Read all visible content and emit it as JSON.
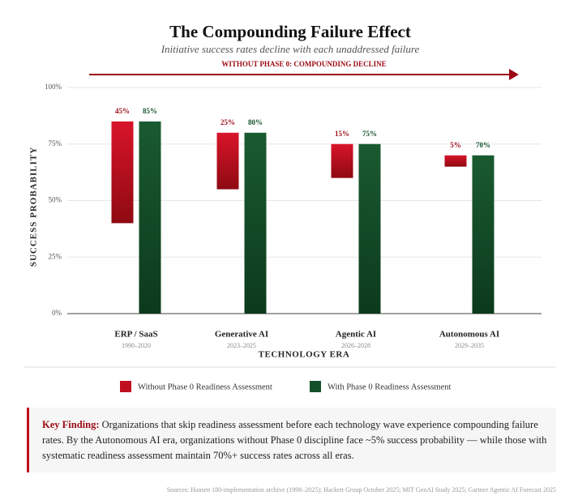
{
  "chart_data": {
    "type": "bar",
    "title": "The Compounding Failure Effect",
    "subtitle": "Initiative success rates decline with each unaddressed failure",
    "banner": "WITHOUT PHASE 0: COMPOUNDING DECLINE",
    "y_label": "SUCCESS PROBABILITY",
    "x_label": "TECHNOLOGY ERA",
    "categories": [
      "ERP / SaaS",
      "Generative AI",
      "Agentic AI",
      "Autonomous AI"
    ],
    "category_periods": [
      "1990–2020",
      "2023–2025",
      "2026–2028",
      "2029–2035"
    ],
    "series": [
      {
        "name": "Without Phase 0 Readiness Assessment",
        "color": "#c0101f",
        "values": [
          45,
          25,
          15,
          5
        ],
        "value_labels": [
          "45%",
          "25%",
          "15%",
          "5%"
        ]
      },
      {
        "name": "With Phase 0 Readiness Assessment",
        "color": "#14512a",
        "values": [
          85,
          80,
          75,
          70
        ],
        "value_labels": [
          "85%",
          "80%",
          "75%",
          "70%"
        ]
      }
    ],
    "ylim": [
      0,
      100
    ],
    "yticks": [
      {
        "value": 0,
        "label": "0%"
      },
      {
        "value": 25,
        "label": "25%"
      },
      {
        "value": 50,
        "label": "50%"
      },
      {
        "value": 75,
        "label": "75%"
      },
      {
        "value": 100,
        "label": "100%"
      }
    ],
    "grid": true,
    "finding": {
      "label": "Key Finding:",
      "text": "Organizations that skip readiness assessment before each technology wave experience compounding failure rates. By the Autonomous AI era, organizations without Phase 0 discipline face ~5% success probability — while those with systematic readiness assessment maintain 70%+ success rates across all eras."
    },
    "sources": "Sources: Hansen 180-implementation archive (1998–2025); Hackett Group October 2025; MIT GenAI Study 2025; Gartner Agentic AI Forecast 2025"
  }
}
